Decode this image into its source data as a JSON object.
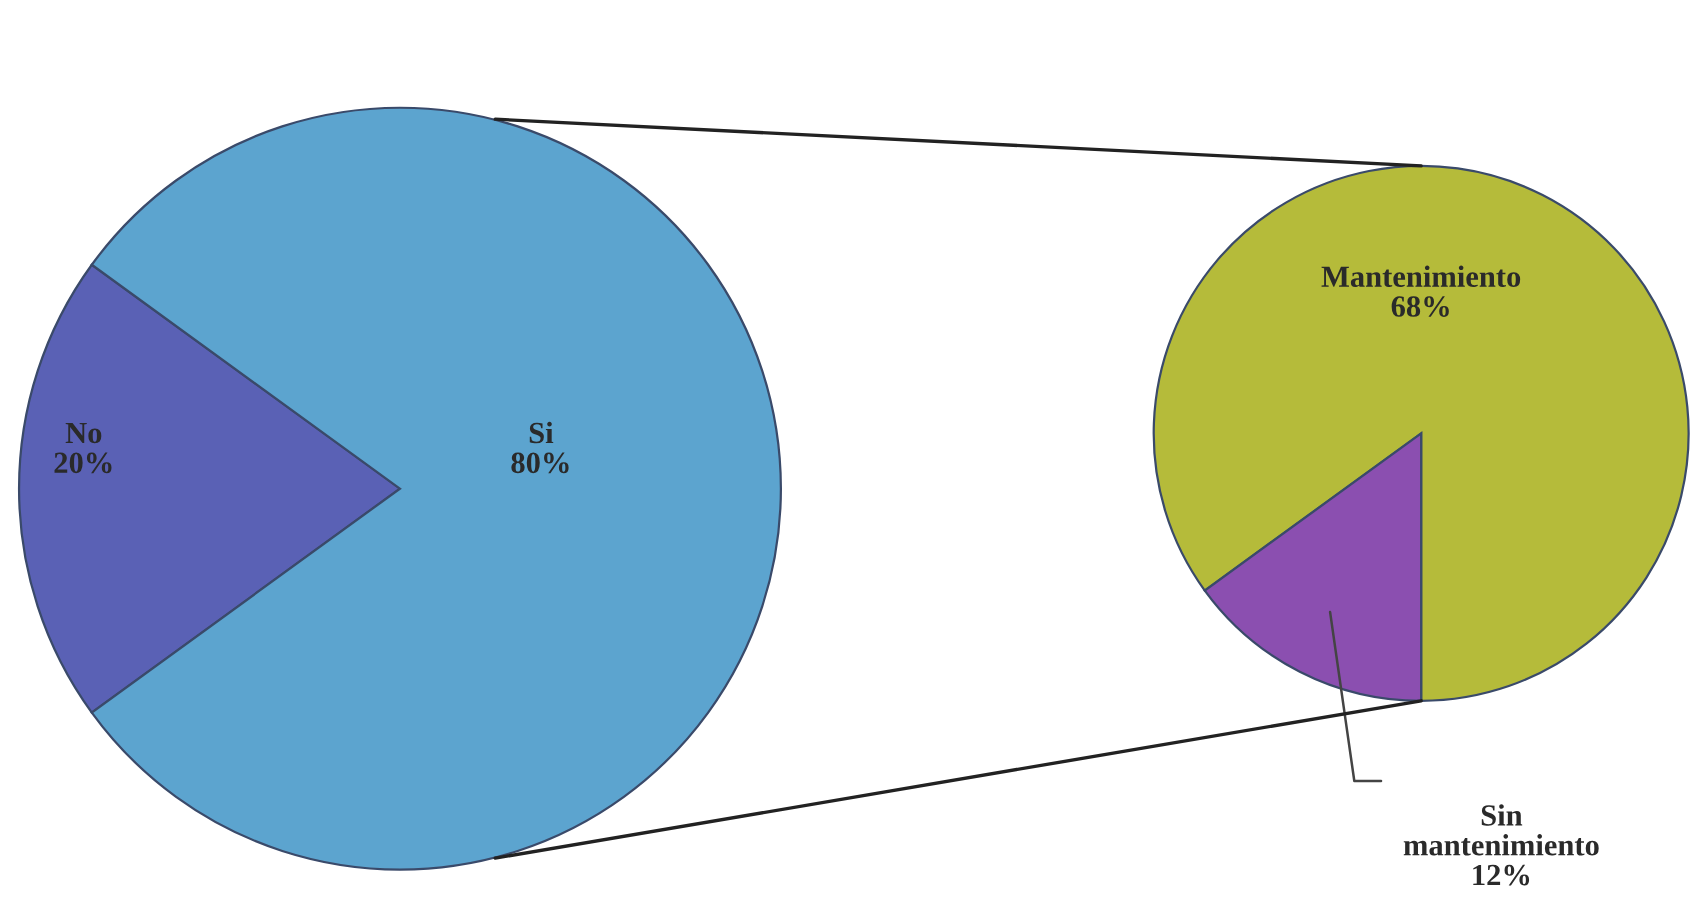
{
  "chart_data": [
    {
      "type": "pie",
      "categories": [
        "No",
        "Si"
      ],
      "values": [
        20,
        80
      ],
      "value_labels": [
        "20%",
        "80%"
      ],
      "colors": [
        "#5a61b5",
        "#5ca4cf"
      ]
    },
    {
      "type": "pie",
      "categories": [
        "Mantenimiento",
        "Sin mantenimiento"
      ],
      "values": [
        68,
        12
      ],
      "value_labels": [
        "68%",
        "12%"
      ],
      "colors": [
        "#b5bb3a",
        "#8b4fb0"
      ]
    }
  ]
}
